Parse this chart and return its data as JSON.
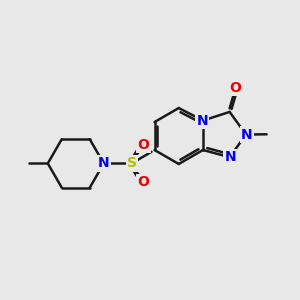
{
  "background_color": "#e8e8e8",
  "bond_color": "#1a1a1a",
  "bond_width": 1.8,
  "atom_colors": {
    "N": "#0000ee",
    "O": "#ee0000",
    "S": "#bbbb00",
    "C": "#1a1a1a"
  },
  "font_size": 10,
  "figsize": [
    3.0,
    3.0
  ],
  "dpi": 100
}
